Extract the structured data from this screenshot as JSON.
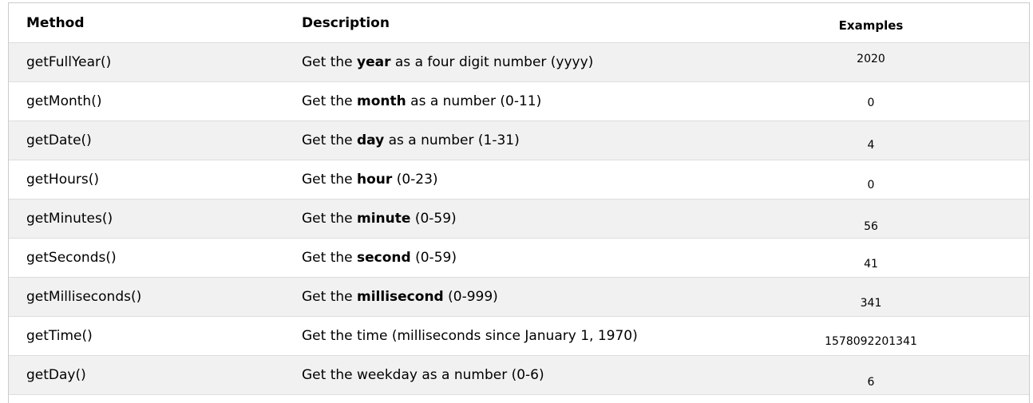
{
  "headers": {
    "method": "Method",
    "description": "Description",
    "examples": "Examples"
  },
  "rows": [
    {
      "method": "getFullYear()",
      "pre": "Get the ",
      "bold": "year",
      "post": " as a four digit number (yyyy)",
      "example": "2020"
    },
    {
      "method": "getMonth()",
      "pre": "Get the ",
      "bold": "month",
      "post": " as a number (0-11)",
      "example": "0"
    },
    {
      "method": "getDate()",
      "pre": "Get the ",
      "bold": "day",
      "post": " as a number (1-31)",
      "example": "4"
    },
    {
      "method": "getHours()",
      "pre": "Get the ",
      "bold": "hour",
      "post": " (0-23)",
      "example": "0"
    },
    {
      "method": "getMinutes()",
      "pre": "Get the ",
      "bold": "minute",
      "post": " (0-59)",
      "example": "56"
    },
    {
      "method": "getSeconds()",
      "pre": "Get the ",
      "bold": "second",
      "post": " (0-59)",
      "example": "41"
    },
    {
      "method": "getMilliseconds()",
      "pre": "Get the ",
      "bold": "millisecond",
      "post": " (0-999)",
      "example": "341"
    },
    {
      "method": "getTime()",
      "pre": "Get the time (milliseconds since January 1, 1970)",
      "bold": "",
      "post": "",
      "example": "1578092201341"
    },
    {
      "method": "getDay()",
      "pre": "Get the weekday as a number (0-6)",
      "bold": "",
      "post": "",
      "example": "6"
    }
  ]
}
